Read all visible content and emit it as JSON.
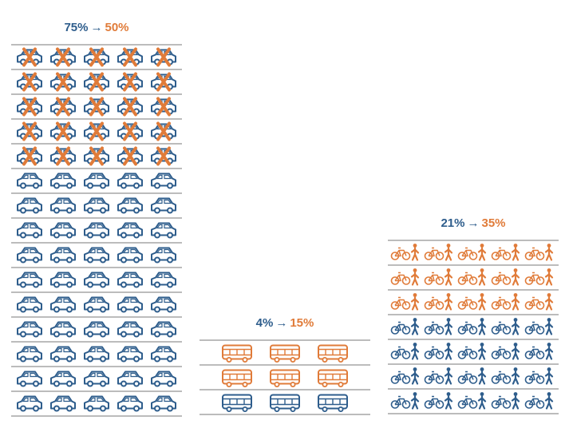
{
  "colors": {
    "current": "#2e5d8c",
    "target": "#e07b39",
    "rule": "#7a7a7a"
  },
  "arrow": "→",
  "chart_data": {
    "type": "pictogram",
    "columns": [
      {
        "name": "car",
        "icon": "car-icon",
        "current_label": "75%",
        "target_label": "50%",
        "current_percent": 75,
        "target_percent": 50,
        "per_row": 5,
        "rows": 15,
        "highlighted_rows": 5,
        "highlight_style": "crossed-out"
      },
      {
        "name": "bus",
        "icon": "bus-icon",
        "current_label": "4%",
        "target_label": "15%",
        "current_percent": 4,
        "target_percent": 15,
        "per_row": 3,
        "rows": 3,
        "highlighted_rows": 2,
        "highlight_style": "added"
      },
      {
        "name": "bike-walk",
        "icon": "bicycle-pedestrian-icon",
        "current_label": "21%",
        "target_label": "35%",
        "current_percent": 21,
        "target_percent": 35,
        "per_row": 5,
        "rows": 7,
        "highlighted_rows": 3,
        "highlight_style": "added"
      }
    ]
  }
}
